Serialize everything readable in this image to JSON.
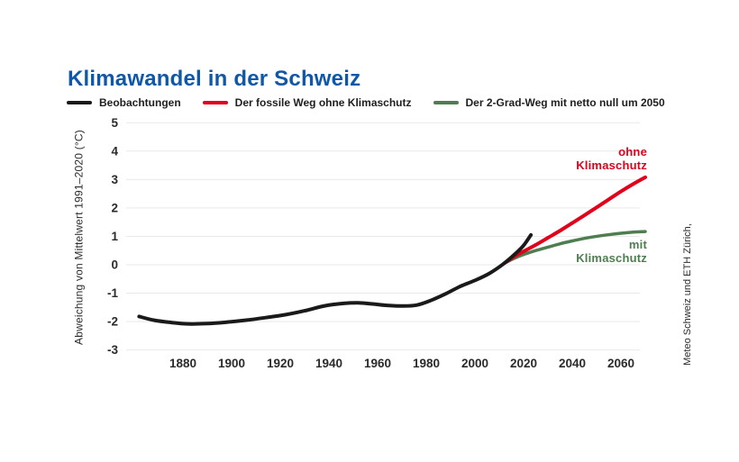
{
  "colors": {
    "title": "#0f57a8",
    "observed": "#1a1a1a",
    "fossil": "#e2001a",
    "two_degree": "#4e7e50",
    "grid": "#e9e9e9",
    "tick": "#2b2b2b"
  },
  "legend": [
    {
      "label": "Beobachtungen",
      "color_key": "observed"
    },
    {
      "label": "Der fossile Weg ohne Klimaschutz",
      "color_key": "fossil"
    },
    {
      "label": "Der 2-Grad-Weg mit netto null um 2050",
      "color_key": "two_degree"
    }
  ],
  "source": "Meteo Schweiz und ETH Zürich,",
  "chart_data": {
    "type": "line",
    "title": "Klimawandel in der Schweiz",
    "ylabel": "Abweichung von Mittelwert 1991–2020 (°C)",
    "xlabel": "",
    "grid": true,
    "legend_position": "top",
    "xlim": [
      1857,
      2070
    ],
    "ylim": [
      -3,
      5
    ],
    "x_ticks": [
      1880,
      1900,
      1920,
      1940,
      1960,
      1980,
      2000,
      2020,
      2040,
      2060
    ],
    "y_ticks": [
      5,
      4,
      3,
      2,
      1,
      0,
      -1,
      -2,
      -3
    ],
    "annotations": {
      "fossil": {
        "line1": "ohne",
        "line2": "Klimaschutz"
      },
      "two_degree": {
        "line1": "mit",
        "line2": "Klimaschutz"
      }
    },
    "series": [
      {
        "name": "Beobachtungen",
        "color": "#1a1a1a",
        "width": 4,
        "points": [
          [
            1862,
            -1.82
          ],
          [
            1868,
            -1.95
          ],
          [
            1875,
            -2.03
          ],
          [
            1882,
            -2.08
          ],
          [
            1890,
            -2.07
          ],
          [
            1898,
            -2.02
          ],
          [
            1906,
            -1.95
          ],
          [
            1914,
            -1.86
          ],
          [
            1922,
            -1.76
          ],
          [
            1930,
            -1.62
          ],
          [
            1938,
            -1.45
          ],
          [
            1946,
            -1.36
          ],
          [
            1952,
            -1.34
          ],
          [
            1958,
            -1.38
          ],
          [
            1964,
            -1.43
          ],
          [
            1970,
            -1.45
          ],
          [
            1976,
            -1.42
          ],
          [
            1982,
            -1.25
          ],
          [
            1988,
            -1.02
          ],
          [
            1994,
            -0.76
          ],
          [
            2000,
            -0.55
          ],
          [
            2006,
            -0.3
          ],
          [
            2012,
            0.05
          ],
          [
            2017,
            0.42
          ],
          [
            2020,
            0.68
          ],
          [
            2023,
            1.05
          ]
        ]
      },
      {
        "name": "Der fossile Weg ohne Klimaschutz",
        "color": "#e2001a",
        "width": 4,
        "points": [
          [
            2012,
            0.05
          ],
          [
            2016,
            0.28
          ],
          [
            2020,
            0.47
          ],
          [
            2025,
            0.7
          ],
          [
            2030,
            0.95
          ],
          [
            2035,
            1.2
          ],
          [
            2040,
            1.47
          ],
          [
            2045,
            1.74
          ],
          [
            2050,
            2.02
          ],
          [
            2055,
            2.3
          ],
          [
            2060,
            2.58
          ],
          [
            2065,
            2.84
          ],
          [
            2070,
            3.08
          ]
        ]
      },
      {
        "name": "Der 2-Grad-Weg mit netto null um 2050",
        "color": "#4e7e50",
        "width": 3.5,
        "points": [
          [
            2012,
            0.05
          ],
          [
            2016,
            0.22
          ],
          [
            2020,
            0.36
          ],
          [
            2025,
            0.5
          ],
          [
            2030,
            0.62
          ],
          [
            2035,
            0.74
          ],
          [
            2040,
            0.84
          ],
          [
            2045,
            0.93
          ],
          [
            2050,
            1.0
          ],
          [
            2055,
            1.06
          ],
          [
            2060,
            1.11
          ],
          [
            2065,
            1.15
          ],
          [
            2070,
            1.17
          ]
        ]
      }
    ]
  }
}
